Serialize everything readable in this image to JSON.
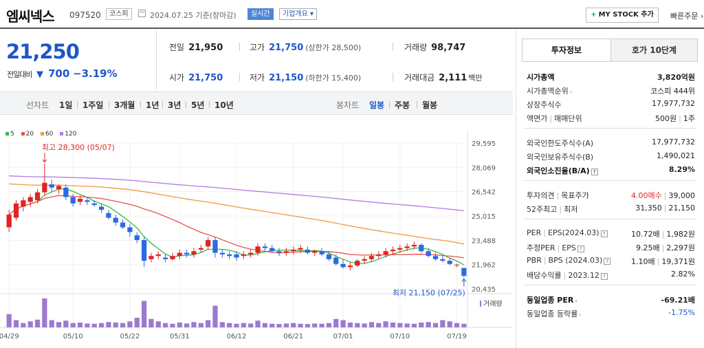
{
  "header": {
    "stock_name": "엠씨넥스",
    "stock_code": "097520",
    "market": "코스피",
    "date": "2024.07.25 기준(장마감)",
    "realtime": "실시간",
    "overview": "기업개요 ▾",
    "mystock": "MY STOCK 추가",
    "mystock_plus": "+",
    "quick_order": "빠른주문 ›"
  },
  "price": {
    "current": "21,250",
    "change_label": "전일대비",
    "change_arrow": "▼",
    "change": "700",
    "change_pct": "−3.19%"
  },
  "quote": {
    "prev_label": "전일",
    "prev": "21,950",
    "high_label": "고가",
    "high": "21,750",
    "upper_limit": "(상한가 28,500)",
    "volume_label": "거래량",
    "volume": "98,747",
    "open_label": "시가",
    "open": "21,750",
    "low_label": "저가",
    "low": "21,150",
    "lower_limit": "(하한가 15,400)",
    "amount_label": "거래대금",
    "amount": "2,111",
    "amount_unit": "백만"
  },
  "periods": {
    "line_label": "선차트",
    "line": [
      "1일",
      "1주일",
      "3개월",
      "1년",
      "3년",
      "5년",
      "10년"
    ],
    "candle_label": "봉차트",
    "candle": [
      "일봉",
      "주봉",
      "월봉"
    ],
    "selected": "일봉"
  },
  "colors": {
    "up": "#e02424",
    "down": "#2b6be0",
    "ma5": "#39b54a",
    "ma20": "#e8504a",
    "ma60": "#f09a3a",
    "ma120": "#b07be0",
    "volume": "#9b7ad0"
  },
  "chart_data": {
    "type": "candlestick",
    "legend": [
      "5",
      "20",
      "60",
      "120"
    ],
    "y_ticks": [
      29595,
      28069,
      26542,
      25015,
      23488,
      21962,
      20435
    ],
    "ylim": [
      20435,
      29595
    ],
    "x_ticks": [
      "04/29",
      "05/10",
      "05/22",
      "05/31",
      "06/12",
      "06/21",
      "07/01",
      "07/10",
      "07/19"
    ],
    "x_tick_index": [
      0,
      9,
      17,
      24,
      32,
      40,
      47,
      55,
      63
    ],
    "high_annotation": "최고 28,300 (05/07)",
    "low_annotation": "최저 21,150 (07/25)",
    "volume_label": "거래량",
    "candles": [
      {
        "o": 24300,
        "h": 25400,
        "l": 24000,
        "c": 25100
      },
      {
        "o": 24900,
        "h": 26000,
        "l": 24700,
        "c": 25800
      },
      {
        "o": 25600,
        "h": 26200,
        "l": 25300,
        "c": 26000
      },
      {
        "o": 25900,
        "h": 26400,
        "l": 25600,
        "c": 26200
      },
      {
        "o": 26000,
        "h": 26700,
        "l": 25800,
        "c": 26500
      },
      {
        "o": 26500,
        "h": 28300,
        "l": 26300,
        "c": 27100
      },
      {
        "o": 27000,
        "h": 27300,
        "l": 26500,
        "c": 26800
      },
      {
        "o": 26700,
        "h": 27000,
        "l": 26400,
        "c": 26900
      },
      {
        "o": 26800,
        "h": 27000,
        "l": 26000,
        "c": 26200
      },
      {
        "o": 26200,
        "h": 26400,
        "l": 25600,
        "c": 25800
      },
      {
        "o": 25900,
        "h": 26300,
        "l": 25700,
        "c": 26100
      },
      {
        "o": 26000,
        "h": 26200,
        "l": 25700,
        "c": 25900
      },
      {
        "o": 25800,
        "h": 26000,
        "l": 25600,
        "c": 25700
      },
      {
        "o": 25600,
        "h": 25800,
        "l": 25200,
        "c": 25400
      },
      {
        "o": 25200,
        "h": 25400,
        "l": 24800,
        "c": 24900
      },
      {
        "o": 24900,
        "h": 25100,
        "l": 24400,
        "c": 24600
      },
      {
        "o": 24600,
        "h": 24800,
        "l": 24200,
        "c": 24300
      },
      {
        "o": 24300,
        "h": 24500,
        "l": 23700,
        "c": 24000
      },
      {
        "o": 23800,
        "h": 24000,
        "l": 23300,
        "c": 23500
      },
      {
        "o": 23500,
        "h": 23700,
        "l": 21800,
        "c": 22200
      },
      {
        "o": 22300,
        "h": 22700,
        "l": 22100,
        "c": 22500
      },
      {
        "o": 22500,
        "h": 22800,
        "l": 22300,
        "c": 22600
      },
      {
        "o": 22400,
        "h": 22600,
        "l": 22100,
        "c": 22300
      },
      {
        "o": 22300,
        "h": 22700,
        "l": 22200,
        "c": 22500
      },
      {
        "o": 22500,
        "h": 22900,
        "l": 22300,
        "c": 22700
      },
      {
        "o": 22700,
        "h": 22900,
        "l": 22400,
        "c": 22600
      },
      {
        "o": 22600,
        "h": 23000,
        "l": 22400,
        "c": 22800
      },
      {
        "o": 22900,
        "h": 23200,
        "l": 22700,
        "c": 23000
      },
      {
        "o": 23100,
        "h": 23700,
        "l": 22900,
        "c": 23500
      },
      {
        "o": 23500,
        "h": 23700,
        "l": 22400,
        "c": 22700
      },
      {
        "o": 22700,
        "h": 22900,
        "l": 22400,
        "c": 22600
      },
      {
        "o": 22600,
        "h": 22800,
        "l": 22300,
        "c": 22500
      },
      {
        "o": 22600,
        "h": 22800,
        "l": 22200,
        "c": 22400
      },
      {
        "o": 22500,
        "h": 22800,
        "l": 22300,
        "c": 22600
      },
      {
        "o": 22600,
        "h": 22900,
        "l": 22400,
        "c": 22700
      },
      {
        "o": 22700,
        "h": 23300,
        "l": 22500,
        "c": 23100
      },
      {
        "o": 23100,
        "h": 23300,
        "l": 22800,
        "c": 23000
      },
      {
        "o": 23000,
        "h": 23200,
        "l": 22700,
        "c": 22800
      },
      {
        "o": 22800,
        "h": 23000,
        "l": 22500,
        "c": 22700
      },
      {
        "o": 22700,
        "h": 23000,
        "l": 22500,
        "c": 22800
      },
      {
        "o": 22800,
        "h": 23100,
        "l": 22600,
        "c": 22900
      },
      {
        "o": 22900,
        "h": 23200,
        "l": 22700,
        "c": 23000
      },
      {
        "o": 22900,
        "h": 23100,
        "l": 22600,
        "c": 22700
      },
      {
        "o": 22700,
        "h": 22900,
        "l": 22500,
        "c": 22800
      },
      {
        "o": 22800,
        "h": 23000,
        "l": 22500,
        "c": 22600
      },
      {
        "o": 22600,
        "h": 22800,
        "l": 22200,
        "c": 22300
      },
      {
        "o": 22400,
        "h": 22600,
        "l": 21900,
        "c": 22000
      },
      {
        "o": 22000,
        "h": 22300,
        "l": 21700,
        "c": 21800
      },
      {
        "o": 21800,
        "h": 22100,
        "l": 21600,
        "c": 21900
      },
      {
        "o": 21900,
        "h": 22300,
        "l": 21800,
        "c": 22200
      },
      {
        "o": 22200,
        "h": 22500,
        "l": 22000,
        "c": 22300
      },
      {
        "o": 22300,
        "h": 22700,
        "l": 22100,
        "c": 22500
      },
      {
        "o": 22500,
        "h": 22800,
        "l": 22300,
        "c": 22600
      },
      {
        "o": 22600,
        "h": 23000,
        "l": 22400,
        "c": 22800
      },
      {
        "o": 22800,
        "h": 23100,
        "l": 22600,
        "c": 22900
      },
      {
        "o": 22900,
        "h": 23200,
        "l": 22700,
        "c": 23000
      },
      {
        "o": 23000,
        "h": 23300,
        "l": 22800,
        "c": 23100
      },
      {
        "o": 23100,
        "h": 23400,
        "l": 22900,
        "c": 23200
      },
      {
        "o": 23200,
        "h": 23300,
        "l": 22700,
        "c": 22800
      },
      {
        "o": 22800,
        "h": 23000,
        "l": 22400,
        "c": 22500
      },
      {
        "o": 22500,
        "h": 22700,
        "l": 22200,
        "c": 22300
      },
      {
        "o": 22300,
        "h": 22500,
        "l": 22100,
        "c": 22200
      },
      {
        "o": 22200,
        "h": 22400,
        "l": 21900,
        "c": 22000
      },
      {
        "o": 21950,
        "h": 22000,
        "l": 21800,
        "c": 21950
      },
      {
        "o": 21750,
        "h": 21750,
        "l": 21150,
        "c": 21250
      }
    ],
    "volumes": [
      55,
      30,
      18,
      25,
      32,
      120,
      30,
      22,
      28,
      18,
      20,
      16,
      15,
      18,
      22,
      20,
      18,
      25,
      40,
      110,
      35,
      25,
      18,
      15,
      20,
      16,
      22,
      18,
      30,
      90,
      22,
      18,
      15,
      18,
      16,
      28,
      18,
      15,
      14,
      16,
      18,
      15,
      14,
      16,
      15,
      18,
      35,
      30,
      20,
      18,
      16,
      22,
      18,
      25,
      20,
      18,
      16,
      15,
      20,
      22,
      18,
      30,
      25,
      18,
      15,
      25
    ]
  },
  "panel": {
    "tab_info": "투자정보",
    "tab_quote": "호가 10단계",
    "market_cap_label": "시가총액",
    "market_cap": "3,820억원",
    "cap_rank_label": "시가총액순위",
    "cap_rank": "코스피 444위",
    "shares_label": "상장주식수",
    "shares": "17,977,732",
    "par_label": "액면가",
    "lot_label": "매매단위",
    "par": "500원",
    "lot": "1주",
    "foreign_limit_label": "외국인한도주식수(A)",
    "foreign_limit": "17,977,732",
    "foreign_hold_label": "외국인보유주식수(B)",
    "foreign_hold": "1,490,021",
    "foreign_ratio_label": "외국인소진율(B/A)",
    "foreign_ratio": "8.29%",
    "opinion_label": "투자의견",
    "target_label": "목표주가",
    "opinion": "4.00매수",
    "target": "39,000",
    "w52_label": "52주최고",
    "w52_low_label": "최저",
    "w52_high": "31,350",
    "w52_low": "21,150",
    "per_label": "PER",
    "eps_label": "EPS(2024.03)",
    "per": "10.72배",
    "eps": "1,982원",
    "est_per_label": "추정PER",
    "est_eps_label": "EPS",
    "est_per": "9.25배",
    "est_eps": "2,297원",
    "pbr_label": "PBR",
    "bps_label": "BPS (2024.03)",
    "pbr": "1.10배",
    "bps": "19,371원",
    "div_label": "배당수익률",
    "div_year": "2023.12",
    "div": "2.82%",
    "ind_per_label": "동일업종 PER",
    "ind_per": "-69.21배",
    "ind_chg_label": "동일업종 등락률",
    "ind_chg": "-1.75%"
  }
}
